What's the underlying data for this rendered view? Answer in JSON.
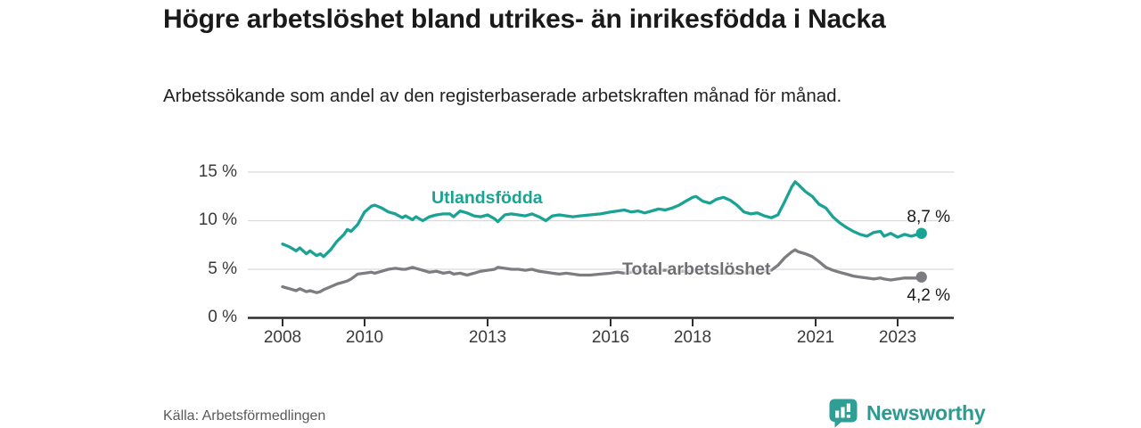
{
  "header": {
    "title": "Högre arbetslöshet bland utrikes- än inrikesfödda i Nacka",
    "subtitle": "Arbetssökande som andel av den registerbaserade arbetskraften månad för månad."
  },
  "footer": {
    "source": "Källa: Arbetsförmedlingen",
    "brand": "Newsworthy"
  },
  "colors": {
    "accent_teal": "#1aa394",
    "series_gray": "#7d7d81",
    "gray_label": "#6f6f73",
    "logo_teal": "#2f9e94",
    "axis": "#2e2e2e",
    "gridline": "#d9d9d9",
    "tick_text": "#3a3a3a"
  },
  "chart_data": {
    "type": "line",
    "title": "Högre arbetslöshet bland utrikes- än inrikesfödda i Nacka",
    "subtitle": "Arbetssökande som andel av den registerbaserade arbetskraften månad för månad.",
    "xlabel": "",
    "ylabel": "",
    "grid": true,
    "legend_position": "inline-labels",
    "ylim": [
      0,
      15.5
    ],
    "x_range_years": [
      2008,
      2023.58
    ],
    "y_tick_labels": [
      "15 %",
      "10 %",
      "5 %",
      "0 %"
    ],
    "y_tick_values": [
      15,
      10,
      5,
      0
    ],
    "x_tick_labels": [
      "2008",
      "2010",
      "2013",
      "2016",
      "2018",
      "2021",
      "2023"
    ],
    "x_tick_years": [
      2008,
      2010,
      2013,
      2016,
      2018,
      2021,
      2023
    ],
    "series": [
      {
        "name": "Utlandsfödda",
        "color": "#1aa394",
        "end_label": "8,7 %",
        "end_value": 8.7,
        "x": [
          2008.0,
          2008.17,
          2008.33,
          2008.42,
          2008.58,
          2008.67,
          2008.83,
          2008.92,
          2009.0,
          2009.17,
          2009.33,
          2009.5,
          2009.58,
          2009.67,
          2009.83,
          2010.0,
          2010.17,
          2010.25,
          2010.42,
          2010.58,
          2010.75,
          2010.92,
          2011.0,
          2011.17,
          2011.25,
          2011.42,
          2011.58,
          2011.75,
          2011.92,
          2012.08,
          2012.17,
          2012.33,
          2012.5,
          2012.67,
          2012.83,
          2013.0,
          2013.17,
          2013.25,
          2013.42,
          2013.58,
          2013.75,
          2013.92,
          2014.08,
          2014.25,
          2014.42,
          2014.58,
          2014.75,
          2014.92,
          2015.08,
          2015.25,
          2015.5,
          2015.75,
          2016.0,
          2016.17,
          2016.33,
          2016.5,
          2016.67,
          2016.83,
          2017.0,
          2017.17,
          2017.33,
          2017.5,
          2017.67,
          2017.83,
          2018.0,
          2018.08,
          2018.25,
          2018.42,
          2018.58,
          2018.75,
          2018.92,
          2019.08,
          2019.25,
          2019.42,
          2019.58,
          2019.75,
          2019.92,
          2020.08,
          2020.25,
          2020.42,
          2020.5,
          2020.58,
          2020.75,
          2020.92,
          2021.08,
          2021.25,
          2021.42,
          2021.58,
          2021.75,
          2021.92,
          2022.08,
          2022.25,
          2022.42,
          2022.58,
          2022.67,
          2022.83,
          2023.0,
          2023.17,
          2023.33,
          2023.5,
          2023.58
        ],
        "values": [
          7.6,
          7.3,
          6.9,
          7.2,
          6.6,
          6.9,
          6.4,
          6.6,
          6.3,
          7.0,
          7.9,
          8.6,
          9.1,
          8.9,
          9.6,
          10.9,
          11.5,
          11.6,
          11.3,
          10.9,
          10.7,
          10.3,
          10.5,
          10.1,
          10.4,
          10.0,
          10.4,
          10.6,
          10.7,
          10.7,
          10.4,
          11.0,
          10.8,
          10.5,
          10.4,
          10.6,
          10.2,
          9.9,
          10.6,
          10.7,
          10.6,
          10.5,
          10.7,
          10.4,
          10.0,
          10.5,
          10.6,
          10.5,
          10.4,
          10.5,
          10.6,
          10.7,
          10.9,
          11.0,
          11.1,
          10.9,
          11.0,
          10.8,
          11.0,
          11.2,
          11.1,
          11.3,
          11.6,
          12.0,
          12.4,
          12.5,
          12.0,
          11.8,
          12.2,
          12.4,
          12.1,
          11.6,
          10.9,
          10.7,
          10.8,
          10.5,
          10.3,
          10.6,
          12.0,
          13.5,
          14.0,
          13.7,
          13.0,
          12.5,
          11.7,
          11.3,
          10.4,
          9.8,
          9.3,
          8.9,
          8.6,
          8.4,
          8.8,
          8.9,
          8.4,
          8.7,
          8.3,
          8.6,
          8.4,
          8.6,
          8.7
        ]
      },
      {
        "name": "Total arbetslöshet",
        "color": "#7d7d81",
        "end_label": "4,2 %",
        "end_value": 4.2,
        "x": [
          2008.0,
          2008.17,
          2008.33,
          2008.42,
          2008.58,
          2008.67,
          2008.83,
          2008.92,
          2009.0,
          2009.17,
          2009.33,
          2009.5,
          2009.58,
          2009.67,
          2009.83,
          2010.0,
          2010.17,
          2010.25,
          2010.42,
          2010.58,
          2010.75,
          2010.92,
          2011.0,
          2011.17,
          2011.25,
          2011.42,
          2011.58,
          2011.75,
          2011.92,
          2012.08,
          2012.17,
          2012.33,
          2012.5,
          2012.67,
          2012.83,
          2013.0,
          2013.17,
          2013.25,
          2013.42,
          2013.58,
          2013.75,
          2013.92,
          2014.08,
          2014.25,
          2014.42,
          2014.58,
          2014.75,
          2014.92,
          2015.08,
          2015.25,
          2015.5,
          2015.75,
          2016.0,
          2016.17,
          2016.33,
          2016.5,
          2016.67,
          2016.83,
          2017.0,
          2017.17,
          2017.33,
          2017.5,
          2017.67,
          2017.83,
          2018.0,
          2018.08,
          2018.25,
          2018.42,
          2018.58,
          2018.75,
          2018.92,
          2019.08,
          2019.25,
          2019.42,
          2019.58,
          2019.75,
          2019.92,
          2020.08,
          2020.25,
          2020.42,
          2020.5,
          2020.58,
          2020.75,
          2020.92,
          2021.08,
          2021.25,
          2021.42,
          2021.58,
          2021.75,
          2021.92,
          2022.08,
          2022.25,
          2022.42,
          2022.58,
          2022.67,
          2022.83,
          2023.0,
          2023.17,
          2023.33,
          2023.5,
          2023.58
        ],
        "values": [
          3.2,
          3.0,
          2.8,
          3.0,
          2.7,
          2.8,
          2.6,
          2.7,
          2.9,
          3.2,
          3.5,
          3.7,
          3.8,
          4.0,
          4.5,
          4.6,
          4.7,
          4.6,
          4.8,
          5.0,
          5.1,
          5.0,
          5.0,
          5.2,
          5.1,
          4.9,
          4.7,
          4.8,
          4.6,
          4.7,
          4.5,
          4.6,
          4.4,
          4.6,
          4.8,
          4.9,
          5.0,
          5.2,
          5.1,
          5.0,
          5.0,
          4.9,
          5.0,
          4.8,
          4.7,
          4.6,
          4.5,
          4.6,
          4.5,
          4.4,
          4.4,
          4.5,
          4.6,
          4.7,
          4.6,
          4.7,
          4.8,
          4.8,
          4.8,
          4.9,
          4.9,
          4.9,
          4.8,
          4.8,
          4.8,
          4.8,
          4.7,
          4.7,
          4.6,
          4.6,
          4.6,
          4.6,
          4.7,
          4.7,
          4.7,
          4.8,
          4.9,
          5.4,
          6.2,
          6.8,
          7.0,
          6.8,
          6.6,
          6.3,
          5.8,
          5.2,
          4.9,
          4.7,
          4.5,
          4.3,
          4.2,
          4.1,
          4.0,
          4.1,
          4.0,
          3.9,
          4.0,
          4.1,
          4.1,
          4.1,
          4.2
        ]
      }
    ]
  }
}
